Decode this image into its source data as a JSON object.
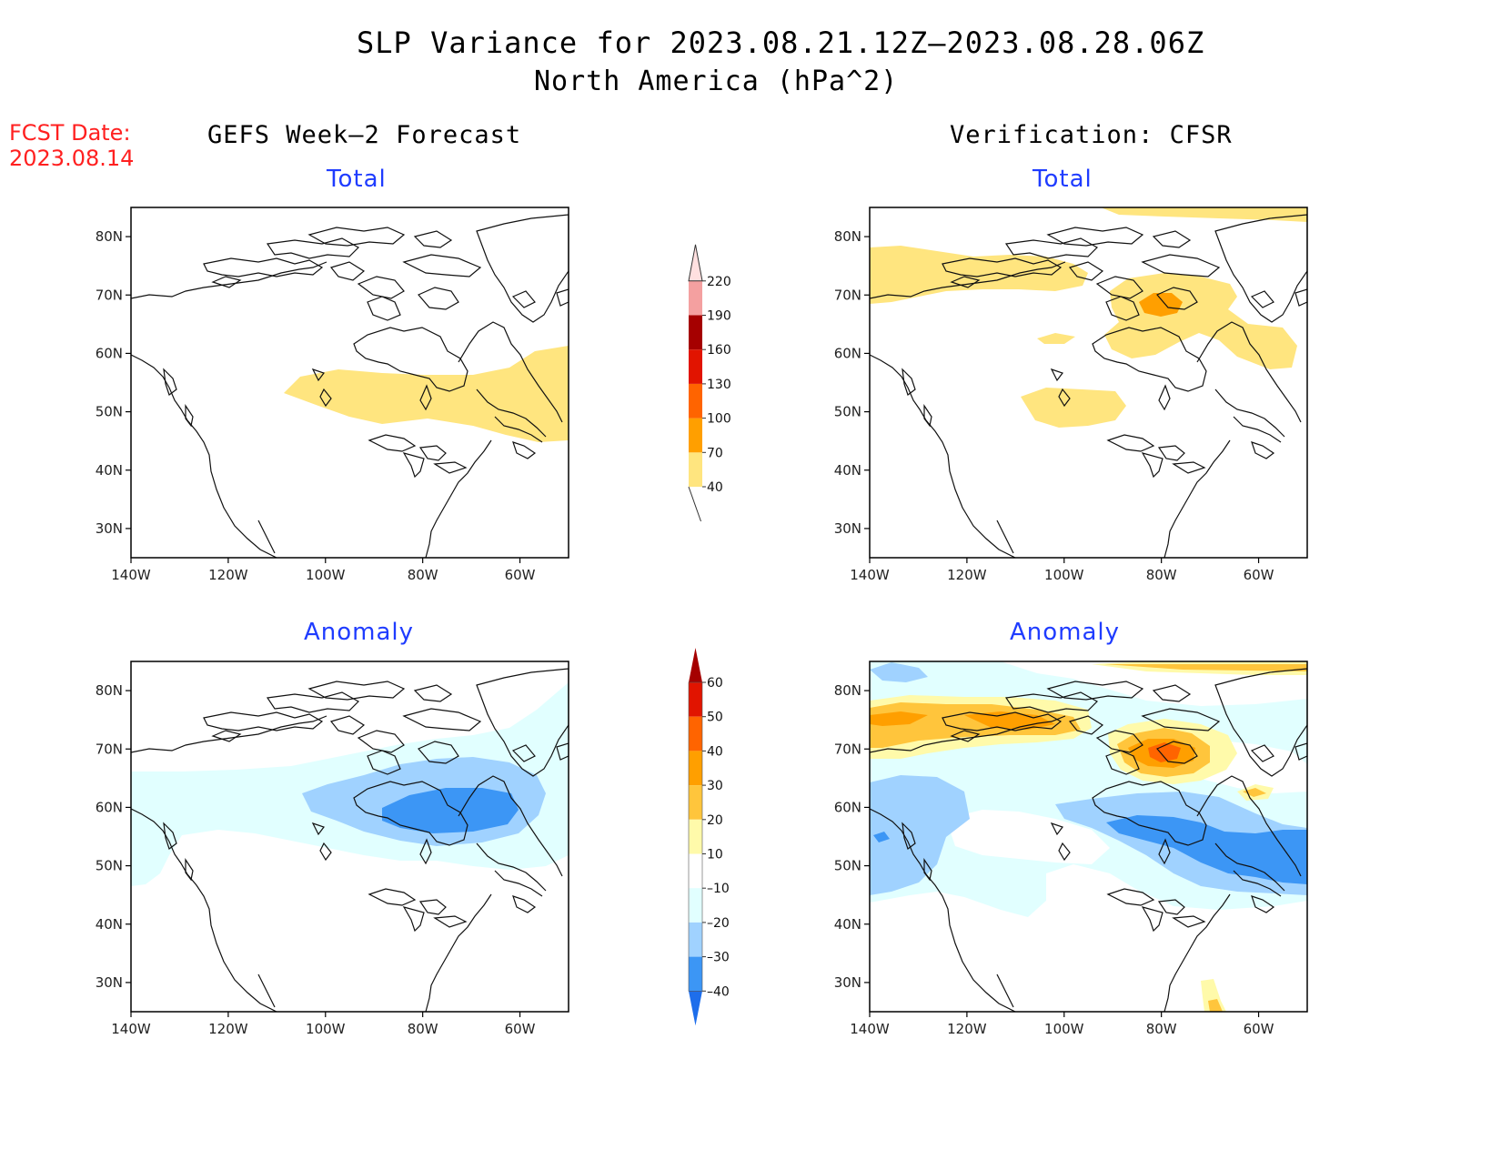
{
  "header": {
    "title": "SLP Variance for 2023.08.21.12Z–2023.08.28.06Z",
    "subtitle": "North America (hPa^2)"
  },
  "fcst": {
    "label": "FCST Date:",
    "date": "2023.08.14"
  },
  "columns": {
    "left": "GEFS Week–2 Forecast",
    "right": "Verification: CFSR"
  },
  "panels": {
    "top_left": "Total",
    "top_right": "Total",
    "bottom_left": "Anomaly",
    "bottom_right": "Anomaly"
  },
  "axes": {
    "lat_labels": [
      "80N",
      "70N",
      "60N",
      "50N",
      "40N",
      "30N"
    ],
    "lat_values": [
      80,
      70,
      60,
      50,
      40,
      30
    ],
    "lon_labels": [
      "140W",
      "120W",
      "100W",
      "80W",
      "60W"
    ],
    "lon_values": [
      -140,
      -120,
      -100,
      -80,
      -60
    ],
    "lat_range": [
      25,
      85
    ],
    "lon_range": [
      -140,
      -50
    ]
  },
  "colorbars": {
    "total": {
      "levels": [
        "40",
        "70",
        "100",
        "130",
        "160",
        "190",
        "220"
      ],
      "colors": [
        "#ffe57f",
        "#ff9f00",
        "#ff6400",
        "#e11400",
        "#a50000",
        "#f4a0a0",
        "#ffe0e0"
      ]
    },
    "anomaly": {
      "levels": [
        "60",
        "50",
        "40",
        "30",
        "20",
        "10",
        "–10",
        "–20",
        "–30",
        "–40"
      ],
      "colors": [
        "#a50000",
        "#e11400",
        "#ff6400",
        "#ff9f00",
        "#ffc53c",
        "#fffaaa",
        "#ffffff",
        "#e1ffff",
        "#a0d2ff",
        "#3c96f5",
        "#1e6eeb"
      ]
    }
  }
}
